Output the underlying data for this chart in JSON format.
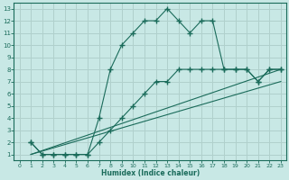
{
  "xlabel": "Humidex (Indice chaleur)",
  "bg_color": "#c8e8e5",
  "grid_color": "#b0d0cc",
  "line_color": "#1a6b5a",
  "xlim": [
    -0.5,
    23.5
  ],
  "ylim": [
    0.5,
    13.5
  ],
  "xticks": [
    0,
    1,
    2,
    3,
    4,
    5,
    6,
    7,
    8,
    9,
    10,
    11,
    12,
    13,
    14,
    15,
    16,
    17,
    18,
    19,
    20,
    21,
    22,
    23
  ],
  "yticks": [
    1,
    2,
    3,
    4,
    5,
    6,
    7,
    8,
    9,
    10,
    11,
    12,
    13
  ],
  "line1_x": [
    1,
    2,
    3,
    4,
    5,
    6,
    7,
    8,
    9,
    10,
    11,
    12,
    13,
    14,
    15,
    16,
    17,
    18,
    19,
    20,
    21,
    22,
    23
  ],
  "line1_y": [
    2,
    1,
    1,
    1,
    1,
    1,
    4,
    8,
    10,
    11,
    12,
    12,
    13,
    12,
    11,
    12,
    12,
    8,
    8,
    8,
    7,
    8,
    8
  ],
  "line2_x": [
    1,
    2,
    3,
    4,
    5,
    6,
    7,
    8,
    9,
    10,
    11,
    12,
    13,
    14,
    15,
    16,
    17,
    18,
    19,
    20,
    21,
    22,
    23
  ],
  "line2_y": [
    2,
    1,
    1,
    1,
    1,
    1,
    2,
    3,
    4,
    5,
    6,
    7,
    7,
    8,
    8,
    8,
    8,
    8,
    8,
    8,
    7,
    8,
    8
  ],
  "line3_x": [
    1,
    23
  ],
  "line3_y": [
    1,
    8
  ],
  "line4_x": [
    1,
    23
  ],
  "line4_y": [
    1,
    7
  ]
}
